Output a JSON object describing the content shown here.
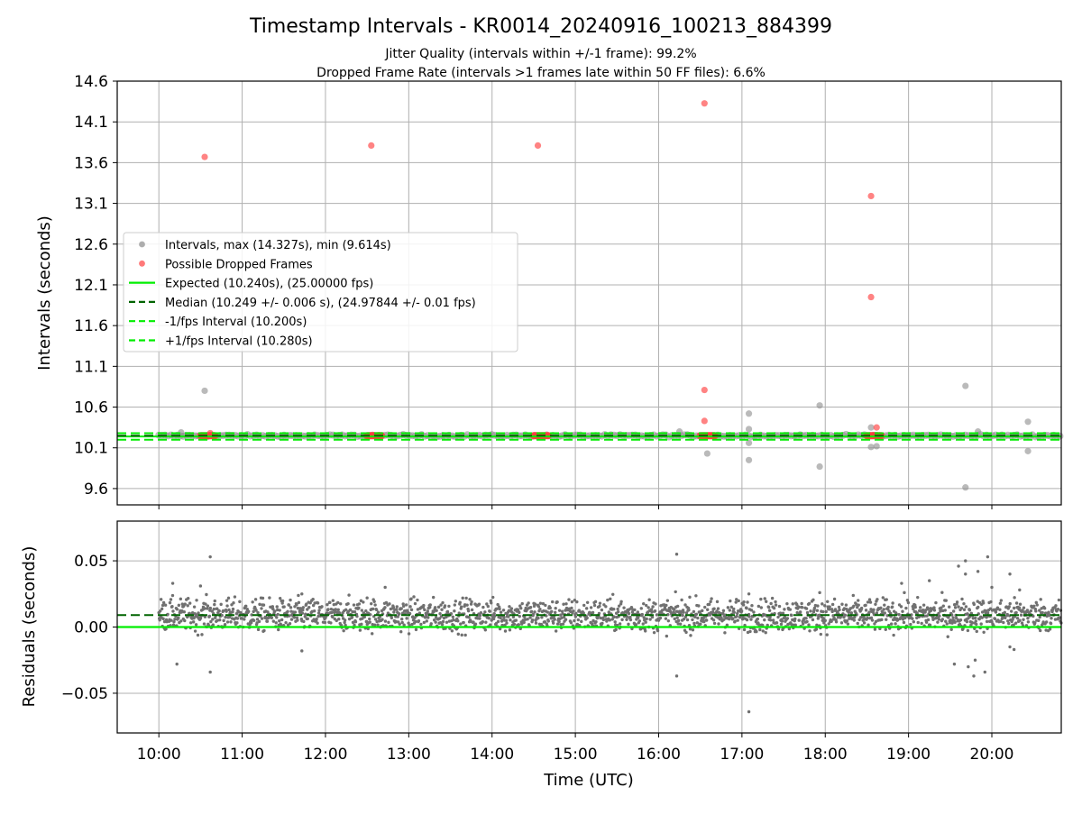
{
  "figure": {
    "title": "Timestamp Intervals - KR0014_20240916_100213_884399",
    "subtitle_1": "Jitter Quality (intervals within +/-1 frame): 99.2%",
    "subtitle_2": "Dropped Frame Rate (intervals >1 frames late within 50 FF files): 6.6%"
  },
  "colors": {
    "intervals": "#8c8c8c",
    "dropped": "#ff4040",
    "expected": "#00ee00",
    "median": "#006400",
    "fps_bounds": "#00ee00",
    "residuals": "#707070",
    "grid": "#b0b0b0"
  },
  "chart_data": [
    {
      "type": "scatter",
      "ylabel": "Intervals (seconds)",
      "xlabel": "",
      "xlim": [
        "09:30",
        "20:50"
      ],
      "ylim": [
        9.4,
        14.6
      ],
      "yticks": [
        9.6,
        10.1,
        10.6,
        11.1,
        11.6,
        12.1,
        12.6,
        13.1,
        13.6,
        14.1,
        14.6
      ],
      "grid": true,
      "legend_position": "center-left",
      "legend": [
        {
          "key": "intervals",
          "label": "Intervals, max (14.327s), min (9.614s)",
          "kind": "marker"
        },
        {
          "key": "dropped",
          "label": "Possible Dropped Frames",
          "kind": "marker"
        },
        {
          "key": "expected",
          "label": "Expected (10.240s), (25.00000 fps)",
          "kind": "solid"
        },
        {
          "key": "median",
          "label": "Median (10.249 +/- 0.006 s), (24.97844 +/- 0.01 fps)",
          "kind": "dashed"
        },
        {
          "key": "minus_fps",
          "label": "-1/fps Interval (10.200s)",
          "kind": "dashed"
        },
        {
          "key": "plus_fps",
          "label": "+1/fps Interval (10.280s)",
          "kind": "dashed"
        }
      ],
      "lines": {
        "expected": 10.24,
        "median": 10.249,
        "minus_fps": 10.2,
        "plus_fps": 10.28
      },
      "band": {
        "start": "10:00",
        "end": "20:50",
        "value": 10.249
      },
      "outliers_intervals": [
        {
          "x": "10:33",
          "y": 10.8
        },
        {
          "x": "16:35",
          "y": 10.03
        },
        {
          "x": "17:05",
          "y": 10.52
        },
        {
          "x": "17:05",
          "y": 10.33
        },
        {
          "x": "17:05",
          "y": 10.16
        },
        {
          "x": "17:05",
          "y": 9.95
        },
        {
          "x": "17:56",
          "y": 10.62
        },
        {
          "x": "17:56",
          "y": 9.87
        },
        {
          "x": "18:33",
          "y": 10.35
        },
        {
          "x": "18:33",
          "y": 10.11
        },
        {
          "x": "18:37",
          "y": 10.12
        },
        {
          "x": "19:41",
          "y": 10.86
        },
        {
          "x": "19:41",
          "y": 9.614
        },
        {
          "x": "20:26",
          "y": 10.42
        },
        {
          "x": "20:26",
          "y": 10.06
        },
        {
          "x": "10:16",
          "y": 10.29
        },
        {
          "x": "16:15",
          "y": 10.3
        },
        {
          "x": "19:50",
          "y": 10.3
        }
      ],
      "dropped_frames": [
        {
          "x": "10:33",
          "y": 13.67
        },
        {
          "x": "10:37",
          "y": 10.28
        },
        {
          "x": "12:33",
          "y": 13.81
        },
        {
          "x": "14:33",
          "y": 13.81
        },
        {
          "x": "16:33",
          "y": 14.327
        },
        {
          "x": "16:33",
          "y": 10.81
        },
        {
          "x": "16:33",
          "y": 10.43
        },
        {
          "x": "18:33",
          "y": 13.19
        },
        {
          "x": "18:33",
          "y": 11.95
        },
        {
          "x": "18:37",
          "y": 10.35
        }
      ],
      "dropped_clusters": [
        {
          "start": "10:30",
          "end": "10:41",
          "y": 10.249
        },
        {
          "start": "12:30",
          "end": "12:41",
          "y": 10.249
        },
        {
          "start": "14:30",
          "end": "14:41",
          "y": 10.249
        },
        {
          "start": "16:30",
          "end": "16:41",
          "y": 10.249
        },
        {
          "start": "18:30",
          "end": "18:41",
          "y": 10.249
        }
      ]
    },
    {
      "type": "scatter",
      "ylabel": "Residuals (seconds)",
      "xlabel": "Time (UTC)",
      "xlim": [
        "09:30",
        "20:50"
      ],
      "ylim": [
        -0.08,
        0.08
      ],
      "yticks": [
        -0.05,
        0.0,
        0.05
      ],
      "ytick_labels": [
        "−0.05",
        "0.00",
        "0.05"
      ],
      "xticks": [
        "10:00",
        "11:00",
        "12:00",
        "13:00",
        "14:00",
        "15:00",
        "16:00",
        "17:00",
        "18:00",
        "19:00",
        "20:00"
      ],
      "grid": true,
      "lines": {
        "expected": 0.0,
        "median": 0.009
      },
      "residual_band": {
        "start": "10:00",
        "end": "20:50",
        "center": 0.009,
        "spread": 0.008
      },
      "outliers": [
        {
          "x": "10:10",
          "y": 0.033
        },
        {
          "x": "10:13",
          "y": -0.028
        },
        {
          "x": "10:30",
          "y": 0.031
        },
        {
          "x": "10:37",
          "y": 0.053
        },
        {
          "x": "10:37",
          "y": -0.034
        },
        {
          "x": "11:43",
          "y": 0.025
        },
        {
          "x": "11:43",
          "y": -0.018
        },
        {
          "x": "12:30",
          "y": 0.022
        },
        {
          "x": "12:43",
          "y": 0.03
        },
        {
          "x": "16:13",
          "y": 0.055
        },
        {
          "x": "16:13",
          "y": -0.037
        },
        {
          "x": "17:05",
          "y": -0.064
        },
        {
          "x": "17:05",
          "y": 0.025
        },
        {
          "x": "17:56",
          "y": 0.026
        },
        {
          "x": "18:55",
          "y": 0.033
        },
        {
          "x": "19:15",
          "y": 0.035
        },
        {
          "x": "19:33",
          "y": -0.028
        },
        {
          "x": "19:36",
          "y": 0.046
        },
        {
          "x": "19:41",
          "y": 0.05
        },
        {
          "x": "19:41",
          "y": 0.04
        },
        {
          "x": "19:43",
          "y": -0.03
        },
        {
          "x": "19:47",
          "y": -0.037
        },
        {
          "x": "19:48",
          "y": -0.025
        },
        {
          "x": "19:50",
          "y": 0.042
        },
        {
          "x": "19:55",
          "y": -0.034
        },
        {
          "x": "19:57",
          "y": 0.053
        },
        {
          "x": "20:00",
          "y": 0.03
        },
        {
          "x": "20:13",
          "y": 0.04
        },
        {
          "x": "20:13",
          "y": -0.015
        },
        {
          "x": "20:16",
          "y": -0.017
        },
        {
          "x": "20:20",
          "y": 0.028
        }
      ]
    }
  ]
}
